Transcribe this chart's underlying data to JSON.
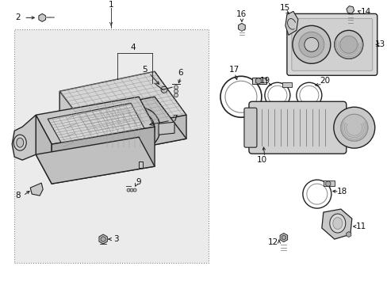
{
  "bg_color": "#ffffff",
  "box_bg": "#d8d8d8",
  "line_color": "#222222",
  "text_color": "#111111",
  "gray_light": "#e8e8e8",
  "gray_mid": "#c8c8c8",
  "gray_dark": "#aaaaaa",
  "box_border": "#666666"
}
